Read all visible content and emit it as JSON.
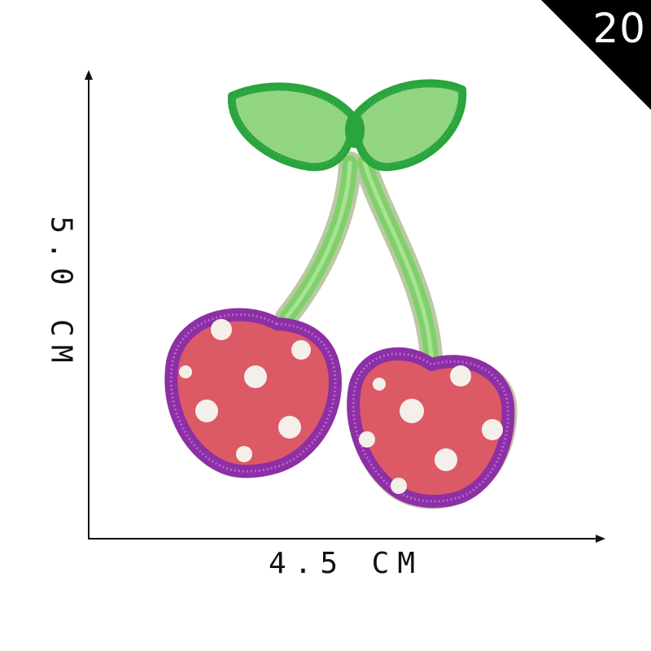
{
  "product": {
    "variant_number": "20",
    "width_label": "4.5 CM",
    "height_label": "5.0 CM"
  },
  "icons": {
    "subject": "cherry-patch-icon",
    "leaves": "leaf-icon",
    "dimension_arrows": "arrow-icon"
  },
  "colors": {
    "leaf_fill": "#8fd47f",
    "leaf_border": "#2aa43c",
    "stem": "#7fd06a",
    "cherry_fill": "#dc5966",
    "cherry_border": "#8d2fa6",
    "dots": "#f4efe9",
    "badge": "#000000",
    "axis": "#111111"
  }
}
